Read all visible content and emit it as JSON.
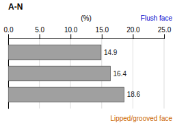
{
  "chart_data": {
    "type": "bar",
    "orientation": "horizontal",
    "title": "A-N",
    "xlabel": "(%)",
    "categories": [
      null,
      null,
      null
    ],
    "values": [
      14.9,
      16.4,
      18.6
    ],
    "color": "#a0a0a0",
    "data_labels": true,
    "xlim": [
      0.0,
      25.0
    ],
    "xticks": [
      {
        "value": 0.0,
        "label": "0.0"
      },
      {
        "value": 5.0,
        "label": "5.0"
      },
      {
        "value": 10.0,
        "label": "10.0"
      },
      {
        "value": 15.0,
        "label": "15.0"
      },
      {
        "value": 20.0,
        "label": "20.0"
      },
      {
        "value": 25.0,
        "label": "25.0"
      }
    ],
    "grid": true,
    "tick_labels": "x",
    "annotations": [
      {
        "text": "Flush face",
        "color": "#0000cc"
      },
      {
        "text": "Lipped/grooved face",
        "color": "#cc6600"
      }
    ]
  }
}
